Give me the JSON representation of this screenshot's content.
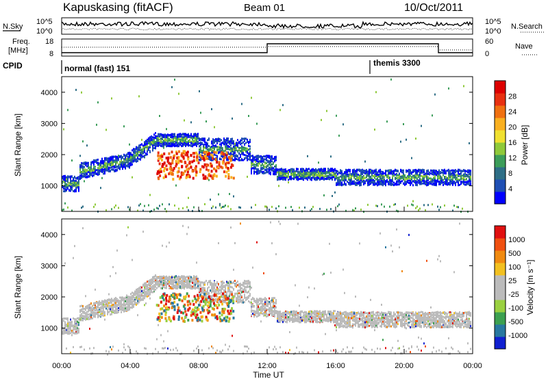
{
  "header": {
    "station": "Kapuskasing (fitACF)",
    "beam": "Beam 01",
    "date": "10/Oct/2011"
  },
  "top_panel": {
    "left_label": "N.Sky",
    "right_label": "N.Search",
    "left_ticks": [
      "10^5",
      "10^0"
    ],
    "right_ticks": [
      "10^5",
      "10^0"
    ]
  },
  "freq_panel": {
    "left_label_1": "Freq.",
    "left_label_2": "[MHz]",
    "right_label": "Nave",
    "left_ticks": [
      "18",
      "8"
    ],
    "right_ticks": [
      "60",
      "0"
    ]
  },
  "cpid": {
    "label": "CPID",
    "mode1": "normal (fast) 151",
    "mode2": "themis 3300"
  },
  "chart_data": [
    {
      "type": "heatmap",
      "name": "power",
      "ylabel": "Slant Range [km]",
      "yticks": [
        "4000",
        "3000",
        "2000",
        "1000"
      ],
      "ylim": [
        180,
        4500
      ],
      "xlim": [
        0,
        24
      ],
      "xticks": [
        "00:00",
        "04:00",
        "08:00",
        "12:00",
        "16:00",
        "20:00",
        "00:00"
      ],
      "colorbar": {
        "label": "Power [dB]",
        "ticks": [
          "28",
          "24",
          "20",
          "16",
          "12",
          "8",
          "4"
        ],
        "colors": [
          "#0000ff",
          "#1f4fb4",
          "#2e6e86",
          "#3c9d5a",
          "#8fc93a",
          "#f0e030",
          "#f9b020",
          "#f07010",
          "#e83010",
          "#dd0000"
        ]
      }
    },
    {
      "type": "heatmap",
      "name": "velocity",
      "ylabel": "Slant Range [km]",
      "yticks": [
        "4000",
        "3000",
        "2000",
        "1000"
      ],
      "ylim": [
        180,
        4500
      ],
      "xlim": [
        0,
        24
      ],
      "xlabel": "Time UT",
      "xticks": [
        "00:00",
        "04:00",
        "08:00",
        "12:00",
        "16:00",
        "20:00",
        "00:00"
      ],
      "colorbar": {
        "label": "Velocity [m s⁻¹]",
        "ticks": [
          "1000",
          "500",
          "100",
          "25",
          "-25",
          "-100",
          "-500",
          "-1000"
        ],
        "colors": [
          "#1020d0",
          "#2878a0",
          "#3ca050",
          "#9ad040",
          "#bbbbbb",
          "#bbbbbb",
          "#f2c020",
          "#f08a10",
          "#f05010",
          "#e01010"
        ]
      }
    }
  ]
}
